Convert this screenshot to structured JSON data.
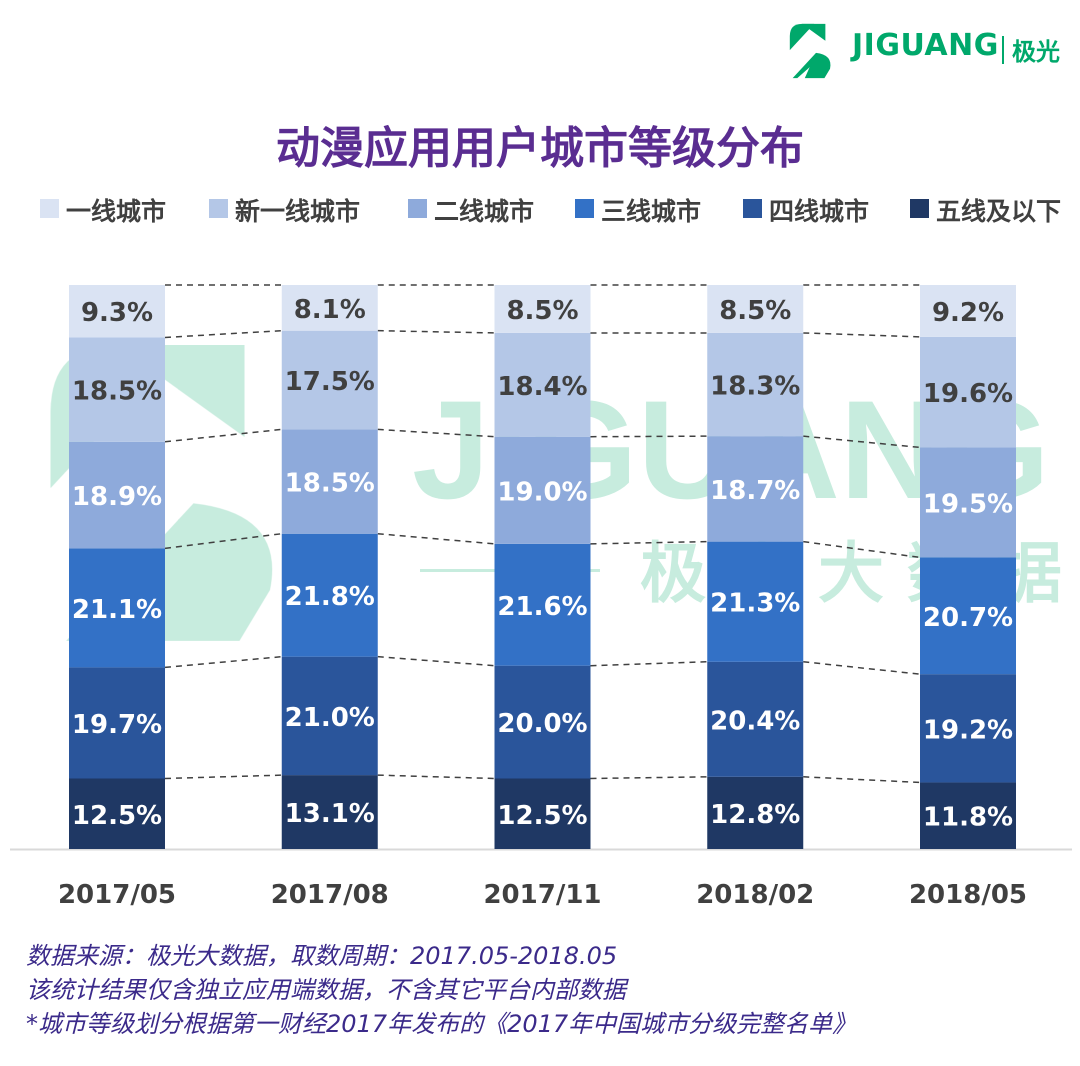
{
  "brand": {
    "name": "JIGUANG",
    "name_cn": "极光",
    "watermark_cn": "极 光 大 数 据"
  },
  "colors": {
    "accent": "#00a86b",
    "title": "#5a2d91",
    "footer": "#3b2a8a",
    "segments": [
      "#dae3f3",
      "#b4c7e7",
      "#8eaadb",
      "#3371c6",
      "#2a559b",
      "#1f3864"
    ],
    "label_dark": "#404040",
    "label_light": "#ffffff"
  },
  "chart_data": {
    "type": "bar",
    "stacked": true,
    "title": "动漫应用用户城市等级分布",
    "categories": [
      "2017/05",
      "2017/08",
      "2017/11",
      "2018/02",
      "2018/05"
    ],
    "series": [
      {
        "name": "一线城市",
        "values": [
          9.3,
          8.1,
          8.5,
          8.5,
          9.2
        ],
        "labels": [
          "9.3%",
          "8.1%",
          "8.5%",
          "8.5%",
          "9.2%"
        ]
      },
      {
        "name": "新一线城市",
        "values": [
          18.5,
          17.5,
          18.4,
          18.3,
          19.6
        ],
        "labels": [
          "18.5%",
          "17.5%",
          "18.4%",
          "18.3%",
          "19.6%"
        ]
      },
      {
        "name": "二线城市",
        "values": [
          18.9,
          18.5,
          19.0,
          18.7,
          19.5
        ],
        "labels": [
          "18.9%",
          "18.5%",
          "19.0%",
          "18.7%",
          "19.5%"
        ]
      },
      {
        "name": "三线城市",
        "values": [
          21.1,
          21.8,
          21.6,
          21.3,
          20.7
        ],
        "labels": [
          "21.1%",
          "21.8%",
          "21.6%",
          "21.3%",
          "20.7%"
        ]
      },
      {
        "name": "四线城市",
        "values": [
          19.7,
          21.0,
          20.0,
          20.4,
          19.2
        ],
        "labels": [
          "19.7%",
          "21.0%",
          "20.0%",
          "20.4%",
          "19.2%"
        ]
      },
      {
        "name": "五线及以下",
        "values": [
          12.5,
          13.1,
          12.5,
          12.8,
          11.8
        ],
        "labels": [
          "12.5%",
          "13.1%",
          "12.5%",
          "12.8%",
          "11.8%"
        ]
      }
    ],
    "ylim": [
      0,
      100
    ],
    "grid": false,
    "legend": "top",
    "series_connectors": "dashed"
  },
  "footer": {
    "line1": "数据来源：极光大数据，取数周期：2017.05-2018.05",
    "line2": "该统计结果仅含独立应用端数据，不含其它平台内部数据",
    "line3": "*城市等级划分根据第一财经2017年发布的《2017年中国城市分级完整名单》"
  }
}
